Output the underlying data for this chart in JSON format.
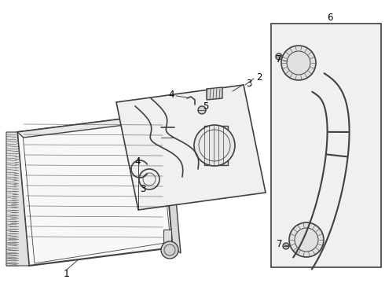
{
  "background_color": "#ffffff",
  "line_color": "#404040",
  "label_color": "#000000",
  "fig_width": 4.9,
  "fig_height": 3.6,
  "dpi": 100
}
